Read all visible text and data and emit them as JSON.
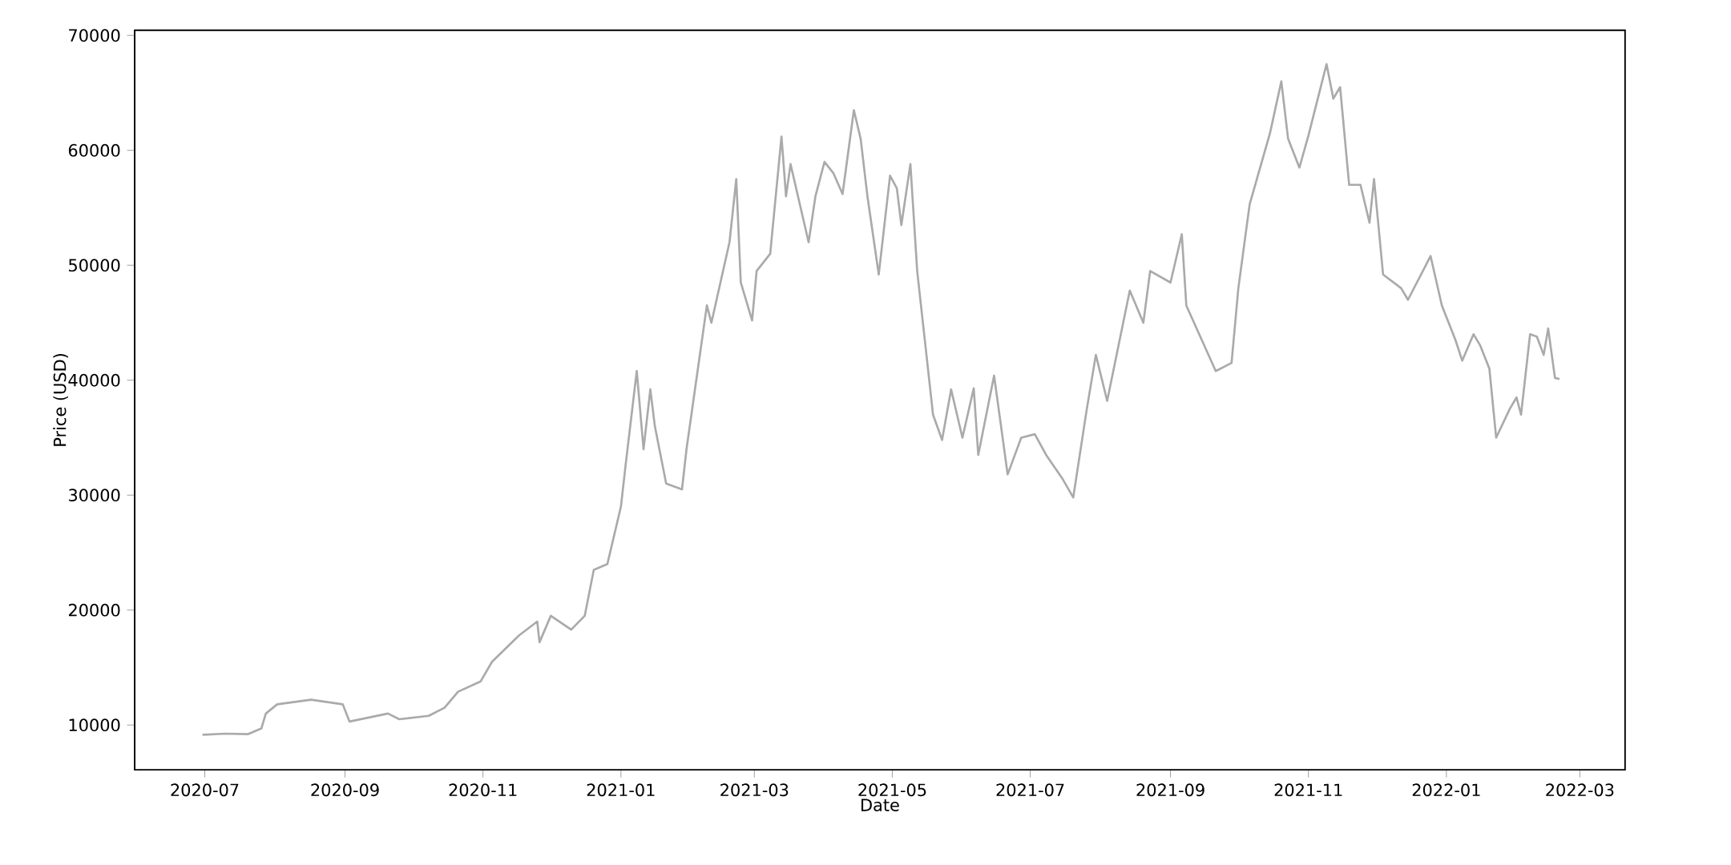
{
  "chart_data": {
    "type": "line",
    "xlabel": "Date",
    "ylabel": "Price (USD)",
    "xlim": [
      "2020-05-31",
      "2022-03-21"
    ],
    "ylim": [
      6100,
      70450
    ],
    "xticks": [
      "2020-07",
      "2020-09",
      "2020-11",
      "2021-01",
      "2021-03",
      "2021-05",
      "2021-07",
      "2021-09",
      "2021-11",
      "2022-01",
      "2022-03"
    ],
    "yticks": [
      10000,
      20000,
      30000,
      40000,
      50000,
      60000,
      70000
    ],
    "series": [
      {
        "color": "#aaaaaa",
        "x": [
          "2020-06-30",
          "2020-07-10",
          "2020-07-20",
          "2020-07-26",
          "2020-07-28",
          "2020-08-02",
          "2020-08-17",
          "2020-08-31",
          "2020-09-03",
          "2020-09-20",
          "2020-09-25",
          "2020-10-08",
          "2020-10-15",
          "2020-10-21",
          "2020-10-31",
          "2020-11-05",
          "2020-11-17",
          "2020-11-25",
          "2020-11-26",
          "2020-12-01",
          "2020-12-10",
          "2020-12-16",
          "2020-12-20",
          "2020-12-26",
          "2021-01-01",
          "2021-01-03",
          "2021-01-08",
          "2021-01-11",
          "2021-01-14",
          "2021-01-16",
          "2021-01-21",
          "2021-01-28",
          "2021-01-30",
          "2021-02-08",
          "2021-02-10",
          "2021-02-14",
          "2021-02-18",
          "2021-02-21",
          "2021-02-23",
          "2021-02-28",
          "2021-03-02",
          "2021-03-08",
          "2021-03-13",
          "2021-03-15",
          "2021-03-17",
          "2021-03-25",
          "2021-03-28",
          "2021-04-01",
          "2021-04-05",
          "2021-04-09",
          "2021-04-14",
          "2021-04-17",
          "2021-04-20",
          "2021-04-25",
          "2021-04-30",
          "2021-05-03",
          "2021-05-05",
          "2021-05-09",
          "2021-05-12",
          "2021-05-19",
          "2021-05-23",
          "2021-05-27",
          "2021-06-01",
          "2021-06-06",
          "2021-06-08",
          "2021-06-15",
          "2021-06-21",
          "2021-06-27",
          "2021-07-03",
          "2021-07-08",
          "2021-07-15",
          "2021-07-20",
          "2021-07-26",
          "2021-07-30",
          "2021-08-04",
          "2021-08-14",
          "2021-08-20",
          "2021-08-23",
          "2021-09-01",
          "2021-09-06",
          "2021-09-08",
          "2021-09-21",
          "2021-09-28",
          "2021-10-01",
          "2021-10-06",
          "2021-10-15",
          "2021-10-20",
          "2021-10-23",
          "2021-10-28",
          "2021-11-01",
          "2021-11-09",
          "2021-11-12",
          "2021-11-15",
          "2021-11-19",
          "2021-11-24",
          "2021-11-28",
          "2021-11-30",
          "2021-12-04",
          "2021-12-12",
          "2021-12-15",
          "2021-12-25",
          "2021-12-30",
          "2022-01-05",
          "2022-01-08",
          "2022-01-13",
          "2022-01-16",
          "2022-01-20",
          "2022-01-23",
          "2022-01-29",
          "2022-02-01",
          "2022-02-03",
          "2022-02-07",
          "2022-02-10",
          "2022-02-13",
          "2022-02-15",
          "2022-02-18",
          "2022-02-20"
        ],
        "values": [
          9150,
          9250,
          9200,
          9700,
          11000,
          11800,
          12200,
          11800,
          10300,
          11000,
          10500,
          10800,
          11500,
          12900,
          13800,
          15500,
          17800,
          19000,
          17200,
          19500,
          18300,
          19500,
          23500,
          24000,
          29000,
          32500,
          40800,
          34000,
          39200,
          36000,
          31000,
          30500,
          34000,
          46500,
          45000,
          48500,
          52000,
          57500,
          48500,
          45200,
          49500,
          51000,
          61200,
          56000,
          58800,
          52000,
          56000,
          59000,
          58000,
          56200,
          63500,
          61000,
          56000,
          49200,
          57800,
          56700,
          53500,
          58800,
          49500,
          37000,
          34800,
          39200,
          35000,
          39300,
          33500,
          40400,
          31800,
          35000,
          35300,
          33500,
          31500,
          29800,
          37500,
          42200,
          38200,
          47800,
          45000,
          49500,
          48500,
          52700,
          46500,
          40800,
          41500,
          48000,
          55300,
          61500,
          66000,
          61000,
          58500,
          61300,
          67500,
          64500,
          65500,
          57000,
          57000,
          53700,
          57500,
          49200,
          48000,
          47000,
          50800,
          46500,
          43500,
          41700,
          44000,
          43000,
          41000,
          35000,
          37500,
          38500,
          37000,
          44000,
          43800,
          42200,
          44500,
          40200,
          40100
        ]
      }
    ]
  }
}
